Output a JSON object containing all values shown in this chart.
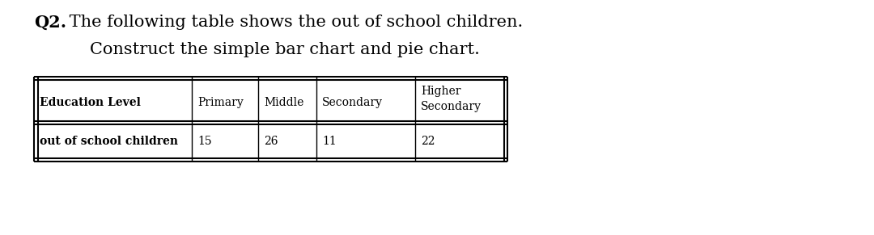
{
  "title_bold": "Q2.",
  "title_normal": " The following table shows the out of school children.",
  "subtitle": "Construct the simple bar chart and pie chart.",
  "col_header_row1": [
    "",
    "",
    "",
    "",
    "Higher"
  ],
  "col_header_row2": [
    "Education Level",
    "Primary",
    "Middle",
    "Secondary",
    "Secondary"
  ],
  "row_label": "out of school children",
  "row_values": [
    "15",
    "26",
    "11",
    "22"
  ],
  "background_color": "#ffffff",
  "text_color": "#000000",
  "title_fontsize": 15,
  "table_fontsize": 10,
  "fig_width": 10.8,
  "fig_height": 2.91
}
